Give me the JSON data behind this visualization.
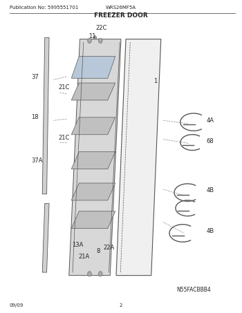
{
  "pub_no": "Publication No: 5995551701",
  "model": "WRS26MF5A",
  "title": "FREEZER DOOR",
  "image_code": "N55FACBBB4",
  "date": "09/09",
  "page": "2",
  "bg_color": "#ffffff",
  "line_color": "#555555",
  "label_color": "#222222"
}
